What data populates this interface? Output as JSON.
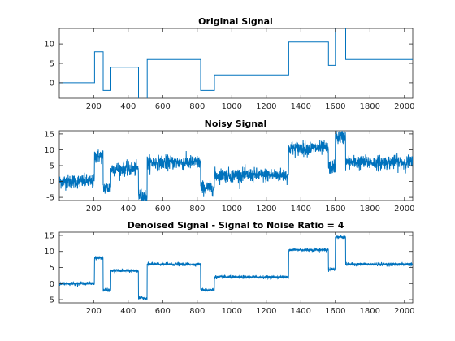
{
  "colors": {
    "series": "#0072BD",
    "axis": "#262626"
  },
  "chart_data": [
    {
      "type": "line",
      "title": "Original Signal",
      "xlim": [
        1,
        2048
      ],
      "ylim": [
        -4,
        14
      ],
      "xticks": [
        200,
        400,
        600,
        800,
        1000,
        1200,
        1400,
        1600,
        1800,
        2000
      ],
      "yticks": [
        0,
        5,
        10
      ],
      "noise": 0,
      "segments": [
        {
          "x0": 1,
          "x1": 205,
          "y": 0
        },
        {
          "x0": 205,
          "x1": 255,
          "y": 8
        },
        {
          "x0": 255,
          "x1": 300,
          "y": -2
        },
        {
          "x0": 300,
          "x1": 460,
          "y": 4
        },
        {
          "x0": 460,
          "x1": 510,
          "y": -6
        },
        {
          "x0": 510,
          "x1": 820,
          "y": 6
        },
        {
          "x0": 820,
          "x1": 900,
          "y": -2
        },
        {
          "x0": 900,
          "x1": 1330,
          "y": 2
        },
        {
          "x0": 1330,
          "x1": 1560,
          "y": 10.5
        },
        {
          "x0": 1560,
          "x1": 1600,
          "y": 4.5
        },
        {
          "x0": 1600,
          "x1": 1660,
          "y": 15
        },
        {
          "x0": 1660,
          "x1": 2048,
          "y": 6
        }
      ]
    },
    {
      "type": "line",
      "title": "Noisy Signal",
      "xlim": [
        1,
        2048
      ],
      "ylim": [
        -6,
        16
      ],
      "xticks": [
        200,
        400,
        600,
        800,
        1000,
        1200,
        1400,
        1600,
        1800,
        2000
      ],
      "yticks": [
        -5,
        0,
        5,
        10,
        15
      ],
      "noise": 1.1,
      "segments": [
        {
          "x0": 1,
          "x1": 205,
          "y": 0
        },
        {
          "x0": 205,
          "x1": 255,
          "y": 8
        },
        {
          "x0": 255,
          "x1": 300,
          "y": -2
        },
        {
          "x0": 300,
          "x1": 460,
          "y": 4
        },
        {
          "x0": 460,
          "x1": 510,
          "y": -4.5
        },
        {
          "x0": 510,
          "x1": 820,
          "y": 6
        },
        {
          "x0": 820,
          "x1": 900,
          "y": -2
        },
        {
          "x0": 900,
          "x1": 1330,
          "y": 2
        },
        {
          "x0": 1330,
          "x1": 1560,
          "y": 10.5
        },
        {
          "x0": 1560,
          "x1": 1600,
          "y": 4.5
        },
        {
          "x0": 1600,
          "x1": 1660,
          "y": 14
        },
        {
          "x0": 1660,
          "x1": 2048,
          "y": 6
        }
      ]
    },
    {
      "type": "line",
      "title": "Denoised Signal - Signal to Noise Ratio = 4",
      "xlim": [
        1,
        2048
      ],
      "ylim": [
        -6,
        16
      ],
      "xticks": [
        200,
        400,
        600,
        800,
        1000,
        1200,
        1400,
        1600,
        1800,
        2000
      ],
      "yticks": [
        -5,
        0,
        5,
        10,
        15
      ],
      "noise": 0.25,
      "segments": [
        {
          "x0": 1,
          "x1": 205,
          "y": 0
        },
        {
          "x0": 205,
          "x1": 255,
          "y": 8
        },
        {
          "x0": 255,
          "x1": 300,
          "y": -2
        },
        {
          "x0": 300,
          "x1": 460,
          "y": 4
        },
        {
          "x0": 460,
          "x1": 510,
          "y": -4.5
        },
        {
          "x0": 510,
          "x1": 820,
          "y": 6
        },
        {
          "x0": 820,
          "x1": 900,
          "y": -2
        },
        {
          "x0": 900,
          "x1": 1330,
          "y": 2
        },
        {
          "x0": 1330,
          "x1": 1560,
          "y": 10.5
        },
        {
          "x0": 1560,
          "x1": 1600,
          "y": 4.5
        },
        {
          "x0": 1600,
          "x1": 1660,
          "y": 14.5
        },
        {
          "x0": 1660,
          "x1": 2048,
          "y": 6
        }
      ]
    }
  ]
}
